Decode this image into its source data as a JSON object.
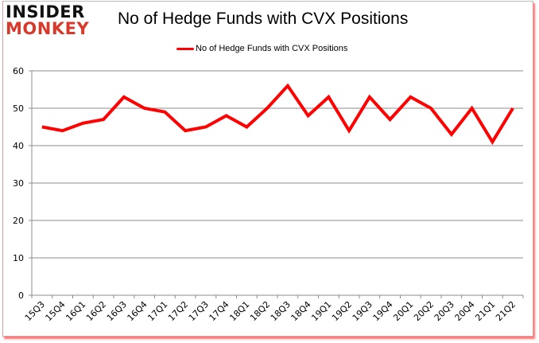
{
  "logo": {
    "line1": "INSIDER",
    "line2": "MONKEY"
  },
  "colors": {
    "series": "#ff0000",
    "logo_accent": "#d8392b",
    "grid": "#8c8c8c"
  },
  "chart_data": {
    "type": "line",
    "title": "No of Hedge Funds with CVX Positions",
    "xlabel": "",
    "ylabel": "",
    "ylim": [
      0,
      60
    ],
    "yticks": [
      0,
      10,
      20,
      30,
      40,
      50,
      60
    ],
    "grid": true,
    "legend_position": "top",
    "categories": [
      "15Q3",
      "15Q4",
      "16Q1",
      "16Q2",
      "16Q3",
      "16Q4",
      "17Q1",
      "17Q2",
      "17Q3",
      "17Q4",
      "18Q1",
      "18Q2",
      "18Q3",
      "18Q4",
      "19Q1",
      "19Q2",
      "19Q3",
      "19Q4",
      "20Q1",
      "20Q2",
      "20Q3",
      "20Q4",
      "21Q1",
      "21Q2"
    ],
    "series": [
      {
        "name": "No of Hedge Funds with CVX Positions",
        "values": [
          45,
          44,
          46,
          47,
          53,
          50,
          49,
          44,
          45,
          48,
          45,
          50,
          56,
          48,
          53,
          44,
          53,
          47,
          53,
          50,
          43,
          50,
          41,
          50
        ]
      }
    ]
  }
}
